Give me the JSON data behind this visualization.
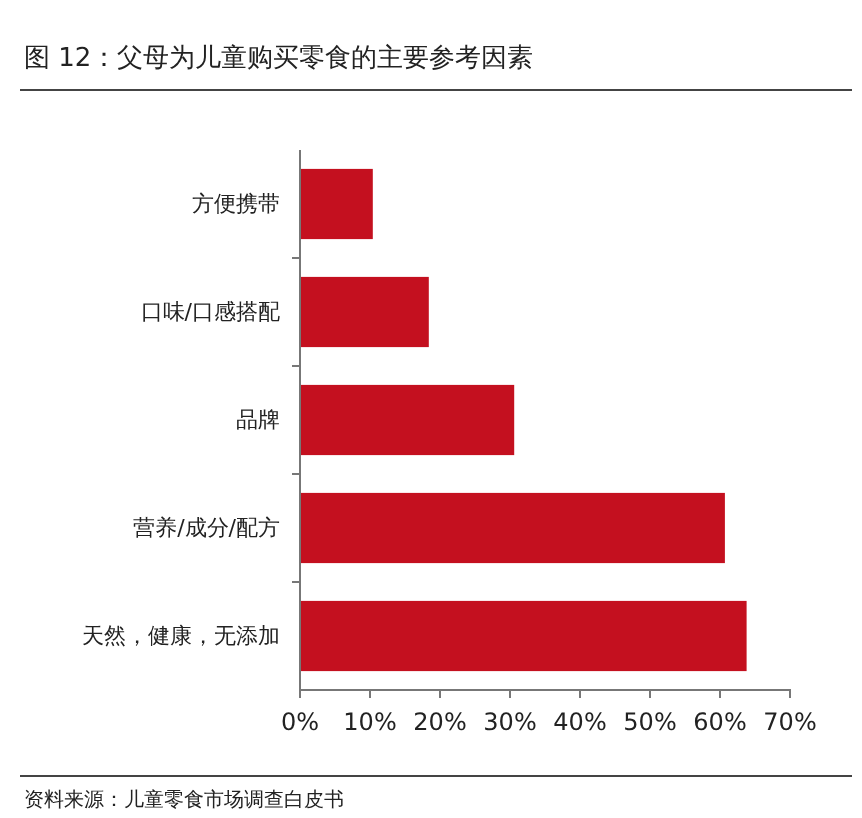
{
  "chart_data": {
    "type": "bar",
    "orientation": "horizontal",
    "title": "图 12：父母为儿童购买零食的主要参考因素",
    "categories": [
      "方便携带",
      "口味/口感搭配",
      "品牌",
      "营养/成分/配方",
      "天然，健康，无添加"
    ],
    "values": [
      10.4,
      18.4,
      30.6,
      60.7,
      63.8
    ],
    "color": "#c4101f",
    "xlim": [
      0,
      70
    ],
    "xticks": [
      {
        "value": 0,
        "label": "0%"
      },
      {
        "value": 10,
        "label": "10%"
      },
      {
        "value": 20,
        "label": "20%"
      },
      {
        "value": 30,
        "label": "30%"
      },
      {
        "value": 40,
        "label": "40%"
      },
      {
        "value": 50,
        "label": "50%"
      },
      {
        "value": 60,
        "label": "60%"
      },
      {
        "value": 70,
        "label": "70%"
      }
    ],
    "grid": false,
    "annotations": [
      "资料来源：儿童零食市场调查白皮书"
    ]
  }
}
